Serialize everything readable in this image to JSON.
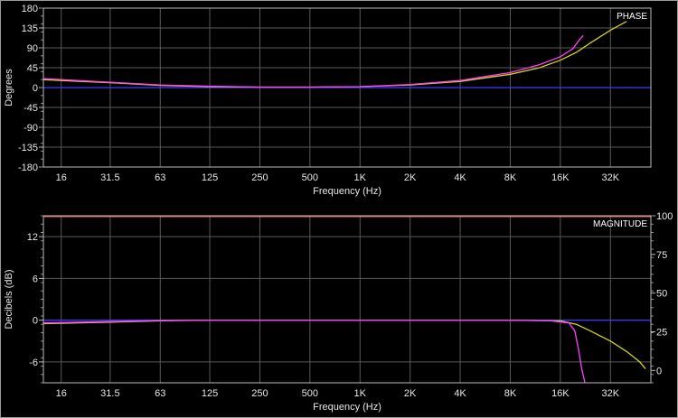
{
  "chart_data": [
    {
      "type": "line",
      "plot_label": "PHASE",
      "xlabel": "Frequency (Hz)",
      "ylabel": "Degrees",
      "x_scale": "log",
      "xlim": [
        12.5,
        56000
      ],
      "ylim": [
        -180,
        180
      ],
      "grid": true,
      "x_tick_values": [
        16,
        31.5,
        63,
        125,
        250,
        500,
        1000,
        2000,
        4000,
        8000,
        16000,
        32000
      ],
      "x_tick_labels": [
        "16",
        "31.5",
        "63",
        "125",
        "250",
        "500",
        "1K",
        "2K",
        "4K",
        "8K",
        "16K",
        "32K"
      ],
      "y_ticks": [
        180,
        135,
        90,
        45,
        0,
        -45,
        -90,
        -135,
        -180
      ],
      "series": [
        {
          "color": "#3a3aff",
          "x": [
            12.5,
            56000
          ],
          "y": [
            0,
            0
          ]
        },
        {
          "color": "#d4d020",
          "x": [
            12.5,
            16,
            31.5,
            63,
            125,
            250,
            500,
            1000,
            2000,
            4000,
            8000,
            12000,
            16000,
            20000,
            24000,
            32000,
            40000
          ],
          "y": [
            18,
            16,
            11,
            5,
            2,
            1,
            1,
            2,
            6,
            14,
            30,
            45,
            62,
            80,
            100,
            130,
            150
          ]
        },
        {
          "color": "#ff40ff",
          "x": [
            12.5,
            16,
            31.5,
            63,
            125,
            250,
            500,
            1000,
            2000,
            4000,
            8000,
            12000,
            16000,
            19000,
            21000,
            22000
          ],
          "y": [
            20,
            18,
            12,
            6,
            3,
            1,
            1,
            2,
            7,
            16,
            34,
            52,
            70,
            88,
            110,
            118
          ]
        }
      ]
    },
    {
      "type": "line",
      "plot_label": "MAGNITUDE",
      "xlabel": "Frequency (Hz)",
      "ylabel": "Decibels (dB)",
      "x_scale": "log",
      "xlim": [
        12.5,
        56000
      ],
      "ylim": [
        -9,
        15
      ],
      "grid": true,
      "x_tick_values": [
        16,
        31.5,
        63,
        125,
        250,
        500,
        1000,
        2000,
        4000,
        8000,
        16000,
        32000
      ],
      "x_tick_labels": [
        "16",
        "31.5",
        "63",
        "125",
        "250",
        "500",
        "1K",
        "2K",
        "4K",
        "8K",
        "16K",
        "32K"
      ],
      "y_ticks": [
        12,
        6,
        0,
        -6
      ],
      "y2_ticks": [
        100,
        75,
        50,
        25,
        0
      ],
      "y2_lim": [
        -8,
        100
      ],
      "series": [
        {
          "color": "#ff5050",
          "x": [
            12.5,
            56000
          ],
          "y2": [
            100,
            100
          ]
        },
        {
          "color": "#3a3aff",
          "x": [
            12.5,
            56000
          ],
          "y": [
            0,
            0
          ]
        },
        {
          "color": "#d4d020",
          "x": [
            12.5,
            16,
            31.5,
            63,
            125,
            1000,
            8000,
            16000,
            20000,
            24000,
            32000,
            40000,
            48000,
            52000
          ],
          "y": [
            -0.5,
            -0.45,
            -0.3,
            -0.1,
            0,
            0,
            0,
            -0.1,
            -0.6,
            -1.5,
            -3,
            -4.5,
            -6,
            -7
          ]
        },
        {
          "color": "#ff40ff",
          "x": [
            12.5,
            16,
            31.5,
            63,
            125,
            1000,
            8000,
            14000,
            18000,
            19500,
            20500,
            21500,
            22500
          ],
          "y": [
            -0.4,
            -0.35,
            -0.2,
            -0.05,
            0,
            0,
            0,
            -0.1,
            -0.4,
            -1.5,
            -4,
            -7,
            -9
          ]
        }
      ]
    }
  ]
}
